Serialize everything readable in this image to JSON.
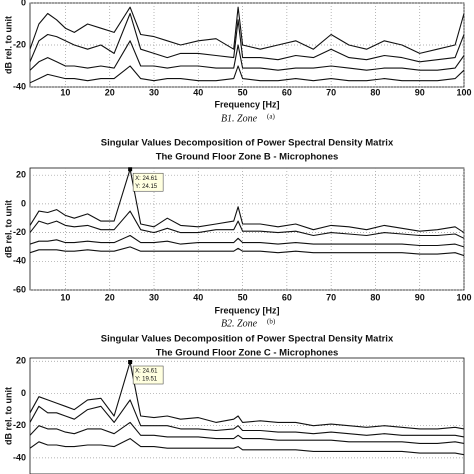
{
  "chart_data": [
    {
      "type": "line",
      "xlabel": "Frequency [Hz]",
      "ylabel": "dB rel. to unit",
      "caption": "B1. Zone",
      "caption_tag": "(a)",
      "xlim": [
        2,
        100
      ],
      "ylim": [
        -40,
        0
      ],
      "xticks": [
        10,
        20,
        30,
        40,
        50,
        60,
        70,
        80,
        90,
        100
      ],
      "yticks": [
        -40,
        -20,
        0
      ],
      "grid": true,
      "x": [
        2,
        4,
        6,
        8,
        10,
        12,
        15,
        18,
        21,
        24.61,
        27,
        30,
        33,
        36,
        40,
        44,
        48,
        49,
        50,
        54,
        58,
        62,
        66,
        70,
        74,
        78,
        82,
        86,
        90,
        94,
        98,
        100
      ],
      "series": [
        {
          "color": "#111111",
          "values": [
            -22,
            -10,
            -5,
            -8,
            -12,
            -14,
            -10,
            -12,
            -14,
            -2,
            -15,
            -16,
            -18,
            -20,
            -18,
            -17,
            -22,
            -2,
            -20,
            -22,
            -20,
            -18,
            -22,
            -15,
            -20,
            -22,
            -18,
            -20,
            -24,
            -22,
            -20,
            -5
          ]
        },
        {
          "color": "#111111",
          "values": [
            -28,
            -18,
            -15,
            -16,
            -18,
            -20,
            -22,
            -20,
            -24,
            -5,
            -22,
            -24,
            -26,
            -24,
            -24,
            -25,
            -26,
            -8,
            -26,
            -26,
            -27,
            -25,
            -26,
            -22,
            -26,
            -27,
            -25,
            -26,
            -28,
            -27,
            -26,
            -15
          ]
        },
        {
          "color": "#111111",
          "values": [
            -32,
            -28,
            -26,
            -28,
            -30,
            -30,
            -31,
            -30,
            -31,
            -18,
            -30,
            -30,
            -31,
            -30,
            -30,
            -31,
            -31,
            -20,
            -31,
            -31,
            -32,
            -31,
            -31,
            -30,
            -31,
            -32,
            -31,
            -31,
            -32,
            -32,
            -31,
            -25
          ]
        },
        {
          "color": "#111111",
          "values": [
            -38,
            -36,
            -34,
            -35,
            -36,
            -36,
            -37,
            -36,
            -36,
            -30,
            -36,
            -37,
            -36,
            -36,
            -37,
            -37,
            -36,
            -30,
            -36,
            -37,
            -37,
            -36,
            -37,
            -36,
            -37,
            -37,
            -36,
            -37,
            -37,
            -37,
            -36,
            -32
          ]
        }
      ]
    },
    {
      "type": "line",
      "title": [
        "Singular Values Decomposition of Power Spectral Density Matrix",
        "The Ground Floor Zone B - Microphones"
      ],
      "xlabel": "Frequency [Hz]",
      "ylabel": "dB rel. to unit",
      "caption": "B2. Zone",
      "caption_tag": "(b)",
      "xlim": [
        2,
        100
      ],
      "ylim": [
        -60,
        25
      ],
      "xticks": [
        10,
        20,
        30,
        40,
        50,
        60,
        70,
        80,
        90,
        {
          "value": 100,
          "label": "100"
        }
      ],
      "yticks": [
        -60,
        -40,
        -20,
        0,
        20
      ],
      "grid": true,
      "annotations": [
        {
          "x": 24.61,
          "y": 24.15,
          "lines": [
            "X: 24.61",
            "Y: 24.15"
          ]
        }
      ],
      "x": [
        2,
        4,
        6,
        8,
        10,
        12,
        15,
        18,
        21,
        24.61,
        27,
        30,
        33,
        36,
        40,
        44,
        48,
        49,
        50,
        54,
        58,
        62,
        66,
        70,
        74,
        78,
        82,
        86,
        90,
        94,
        98,
        100
      ],
      "series": [
        {
          "color": "#111111",
          "values": [
            -15,
            -5,
            -6,
            -4,
            -8,
            -10,
            -7,
            -12,
            -12,
            24.15,
            -14,
            -16,
            -10,
            -15,
            -16,
            -14,
            -12,
            -2,
            -14,
            -14,
            -16,
            -14,
            -18,
            -15,
            -16,
            -18,
            -15,
            -17,
            -19,
            -18,
            -16,
            -20
          ]
        },
        {
          "color": "#111111",
          "values": [
            -20,
            -12,
            -14,
            -12,
            -15,
            -16,
            -15,
            -18,
            -18,
            -5,
            -18,
            -20,
            -17,
            -20,
            -20,
            -18,
            -18,
            -12,
            -19,
            -19,
            -20,
            -19,
            -22,
            -20,
            -21,
            -22,
            -20,
            -21,
            -22,
            -22,
            -21,
            -24
          ]
        },
        {
          "color": "#111111",
          "values": [
            -28,
            -26,
            -26,
            -25,
            -27,
            -27,
            -26,
            -27,
            -27,
            -22,
            -27,
            -27,
            -26,
            -28,
            -27,
            -27,
            -27,
            -24,
            -27,
            -27,
            -28,
            -27,
            -28,
            -28,
            -28,
            -28,
            -28,
            -28,
            -29,
            -29,
            -28,
            -30
          ]
        },
        {
          "color": "#111111",
          "values": [
            -34,
            -32,
            -32,
            -32,
            -33,
            -33,
            -32,
            -33,
            -33,
            -30,
            -33,
            -33,
            -33,
            -33,
            -33,
            -33,
            -33,
            -31,
            -33,
            -33,
            -34,
            -33,
            -34,
            -34,
            -34,
            -34,
            -34,
            -34,
            -35,
            -35,
            -34,
            -36
          ]
        }
      ]
    },
    {
      "type": "line",
      "title": [
        "Singular Values Decomposition of Power Spectral Density Matrix",
        "The Ground Floor Zone C - Microphones"
      ],
      "ylabel": "dB rel. to unit",
      "xlim": [
        2,
        100
      ],
      "ylim": [
        -50,
        22
      ],
      "yticks": [
        -40,
        -20,
        0,
        20
      ],
      "grid": true,
      "annotations": [
        {
          "x": 24.61,
          "y": 19.51,
          "lines": [
            "X: 24.61",
            "Y: 19.51"
          ]
        }
      ],
      "x": [
        2,
        4,
        6,
        8,
        10,
        12,
        15,
        18,
        21,
        24.61,
        27,
        30,
        33,
        36,
        40,
        44,
        48,
        49,
        50,
        54,
        58,
        62,
        66,
        70,
        74,
        78,
        82,
        86,
        90,
        94,
        98,
        100
      ],
      "series": [
        {
          "color": "#111111",
          "values": [
            -12,
            -2,
            -4,
            -6,
            -8,
            -10,
            -4,
            -3,
            -14,
            19.51,
            -14,
            -15,
            -14,
            -16,
            -15,
            -18,
            -16,
            -14,
            -18,
            -17,
            -18,
            -18,
            -20,
            -19,
            -20,
            -21,
            -20,
            -21,
            -22,
            -22,
            -21,
            -22
          ]
        },
        {
          "color": "#111111",
          "values": [
            -18,
            -8,
            -12,
            -12,
            -14,
            -16,
            -10,
            -8,
            -18,
            -4,
            -20,
            -20,
            -20,
            -22,
            -22,
            -23,
            -22,
            -20,
            -23,
            -23,
            -24,
            -24,
            -25,
            -24,
            -25,
            -26,
            -25,
            -26,
            -26,
            -26,
            -26,
            -27
          ]
        },
        {
          "color": "#111111",
          "values": [
            -26,
            -20,
            -22,
            -22,
            -24,
            -25,
            -22,
            -22,
            -25,
            -18,
            -26,
            -26,
            -27,
            -27,
            -27,
            -28,
            -28,
            -26,
            -28,
            -28,
            -29,
            -29,
            -29,
            -29,
            -30,
            -30,
            -30,
            -30,
            -31,
            -31,
            -30,
            -31
          ]
        },
        {
          "color": "#111111",
          "values": [
            -34,
            -30,
            -32,
            -32,
            -33,
            -33,
            -32,
            -32,
            -33,
            -28,
            -33,
            -33,
            -34,
            -34,
            -34,
            -34,
            -34,
            -33,
            -35,
            -35,
            -35,
            -35,
            -36,
            -36,
            -36,
            -36,
            -36,
            -36,
            -37,
            -37,
            -37,
            -38
          ]
        }
      ]
    }
  ]
}
